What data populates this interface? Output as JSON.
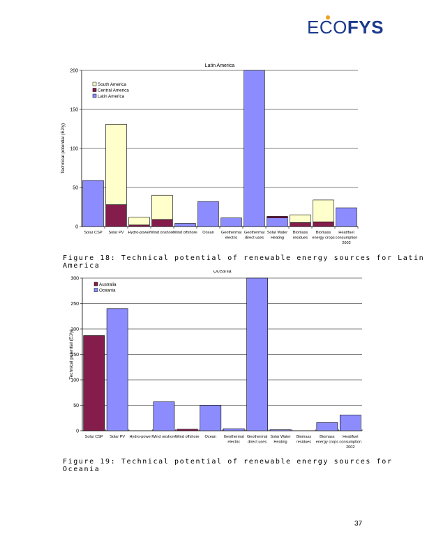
{
  "logo": {
    "text_light": "ECO",
    "text_bold": "FYS"
  },
  "colors": {
    "south_america": "#FFFFCC",
    "central_america": "#841C4C",
    "latin_america": "#8C8CFF",
    "australia": "#841C4C",
    "oceania": "#8C8CFF",
    "grid": "#000000"
  },
  "captions": {
    "fig18": "Figure 18: Technical potential of renewable energy sources for Latin America",
    "fig19": "Figure 19: Technical potential of renewable energy sources for Oceania"
  },
  "page_number": "37",
  "chart_data": [
    {
      "type": "bar",
      "stacked": true,
      "title": "Latin America",
      "xlabel": "",
      "ylabel": "Technical potential (EJ/y)",
      "ylim": [
        0,
        200
      ],
      "yticks": [
        0,
        50,
        100,
        150,
        200
      ],
      "grid": true,
      "legend_position": "top-left",
      "categories": [
        [
          "Solar CSP"
        ],
        [
          "Solar PV"
        ],
        [
          "Hydro-power"
        ],
        [
          "Wind onshore"
        ],
        [
          "Wind offshore"
        ],
        [
          "Ocean"
        ],
        [
          "Geothermal",
          "electric"
        ],
        [
          "Geothermal",
          "direct uses"
        ],
        [
          "Solar Water",
          "Heating"
        ],
        [
          "Biomass",
          "residues"
        ],
        [
          "Biomass",
          "energy crops"
        ],
        [
          "Heat/fuel",
          "consumption",
          "2002"
        ]
      ],
      "legend": [
        "South America",
        "Central America",
        "Latin America"
      ],
      "series": [
        {
          "name": "Latin America",
          "color_key": "latin_america",
          "values": [
            59,
            0,
            0,
            0,
            4,
            32,
            11,
            200,
            11,
            0,
            0,
            24
          ]
        },
        {
          "name": "Central America",
          "color_key": "central_america",
          "values": [
            0,
            28,
            2,
            9,
            0,
            0,
            0,
            0,
            2,
            5,
            6,
            0
          ]
        },
        {
          "name": "South America",
          "color_key": "south_america",
          "values": [
            0,
            103,
            10,
            31,
            0,
            0,
            0,
            0,
            0,
            10,
            28,
            0
          ]
        }
      ]
    },
    {
      "type": "bar",
      "stacked": true,
      "title": "Oceania",
      "xlabel": "",
      "ylabel": "Technical potential (EJ/y)",
      "ylim": [
        0,
        300
      ],
      "yticks": [
        0,
        50,
        100,
        150,
        200,
        250,
        300
      ],
      "grid": true,
      "legend_position": "top-left",
      "categories": [
        [
          "Solar CSP"
        ],
        [
          "Solar PV"
        ],
        [
          "Hydro-power"
        ],
        [
          "Wind onshore"
        ],
        [
          "Wind offshore"
        ],
        [
          "Ocean"
        ],
        [
          "Geothermal",
          "electric"
        ],
        [
          "Geothermal",
          "direct uses"
        ],
        [
          "Solar Water",
          "Heating"
        ],
        [
          "Biomass",
          "residues"
        ],
        [
          "Biomass",
          "energy crops"
        ],
        [
          "Heat/fuel",
          "consumption",
          "2002"
        ]
      ],
      "legend": [
        "Australia",
        "Oceania"
      ],
      "series": [
        {
          "name": "Australia",
          "color_key": "australia",
          "values": [
            187,
            0,
            0,
            0,
            3,
            0,
            0,
            0,
            0,
            0,
            0,
            0
          ]
        },
        {
          "name": "Oceania",
          "color_key": "oceania",
          "values": [
            0,
            240,
            0,
            57,
            0,
            50,
            4,
            300,
            2,
            0,
            16,
            31
          ]
        }
      ]
    }
  ]
}
